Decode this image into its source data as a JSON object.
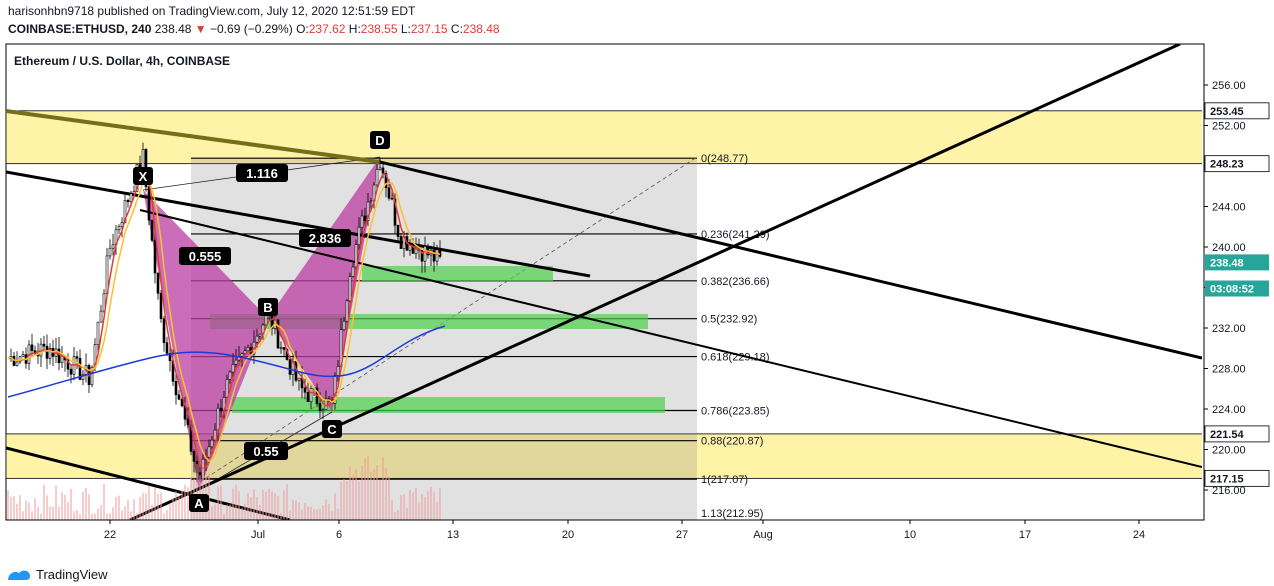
{
  "header": {
    "published_line": "harisonhbn9718 published on TradingView.com, July 12, 2020 12:51:59 EDT",
    "symbol": "COINBASE:ETHUSD, 240",
    "last": "238.48",
    "change": "−0.69 (−0.29%)",
    "o_label": "O:",
    "o_value": "237.62",
    "h_label": "H:",
    "h_value": "238.55",
    "l_label": "L:",
    "l_value": "237.15",
    "c_label": "C:",
    "c_value": "238.48"
  },
  "footer": {
    "brand": "TradingView"
  },
  "chart_data": {
    "type": "line",
    "title": "Ethereum / U.S. Dollar, 4h, COINBASE",
    "ylim": [
      214.0,
      258.0
    ],
    "y_ticks": [
      "256.00",
      "252.00",
      "248.00",
      "244.00",
      "240.00",
      "236.00",
      "232.00",
      "228.00",
      "224.00",
      "220.00",
      "216.00"
    ],
    "y_tick_values": [
      256,
      252,
      248,
      244,
      240,
      236,
      232,
      228,
      224,
      220,
      216
    ],
    "x_tick_labels": [
      "22",
      "Jul",
      "6",
      "13",
      "20",
      "27",
      "Aug",
      "10",
      "17",
      "24"
    ],
    "price_badges": [
      {
        "label": "253.45",
        "value": 253.45,
        "color": "#000000",
        "text_color": "#131722"
      },
      {
        "label": "248.23",
        "value": 248.23,
        "color": "#000000",
        "text_color": "#131722"
      },
      {
        "label": "238.48",
        "value": 238.48,
        "color": "#26a69a",
        "text_color": "#ffffff"
      },
      {
        "label": "03:08:52",
        "value": 235.9,
        "color": "#26a69a",
        "text_color": "#ffffff"
      },
      {
        "label": "221.54",
        "value": 221.54,
        "color": "#000000",
        "text_color": "#131722"
      },
      {
        "label": "217.15",
        "value": 217.15,
        "color": "#000000",
        "text_color": "#131722"
      }
    ],
    "zones": [
      {
        "name": "resistance-zone",
        "from": 248.23,
        "to": 253.45,
        "color": "#fff3a8"
      },
      {
        "name": "support-zone",
        "from": 217.15,
        "to": 221.54,
        "color": "#fff3a8"
      }
    ],
    "fib_levels": [
      {
        "ratio": "0",
        "value": 248.77,
        "label": "0(248.77)"
      },
      {
        "ratio": "0.236",
        "value": 241.29,
        "label": "0.236(241.29)"
      },
      {
        "ratio": "0.382",
        "value": 236.66,
        "label": "0.382(236.66)"
      },
      {
        "ratio": "0.5",
        "value": 232.92,
        "label": "0.5(232.92)"
      },
      {
        "ratio": "0.618",
        "value": 229.18,
        "label": "0.618(229.18)"
      },
      {
        "ratio": "0.786",
        "value": 223.85,
        "label": "0.786(223.85)"
      },
      {
        "ratio": "0.88",
        "value": 220.87,
        "label": "0.88(220.87)"
      },
      {
        "ratio": "1",
        "value": 217.07,
        "label": "1(217.07)"
      },
      {
        "ratio": "1.13",
        "value": 212.95,
        "label": "1.13(212.95)"
      }
    ],
    "pattern_points": [
      {
        "label": "X",
        "value": 248.8
      },
      {
        "label": "A",
        "value": 216.9
      },
      {
        "label": "B",
        "value": 233.4
      },
      {
        "label": "C",
        "value": 224.2
      },
      {
        "label": "D",
        "value": 248.77
      }
    ],
    "pattern_ratios": [
      "1.116",
      "0.555",
      "2.836",
      "0.55"
    ],
    "last_price": 238.48
  }
}
